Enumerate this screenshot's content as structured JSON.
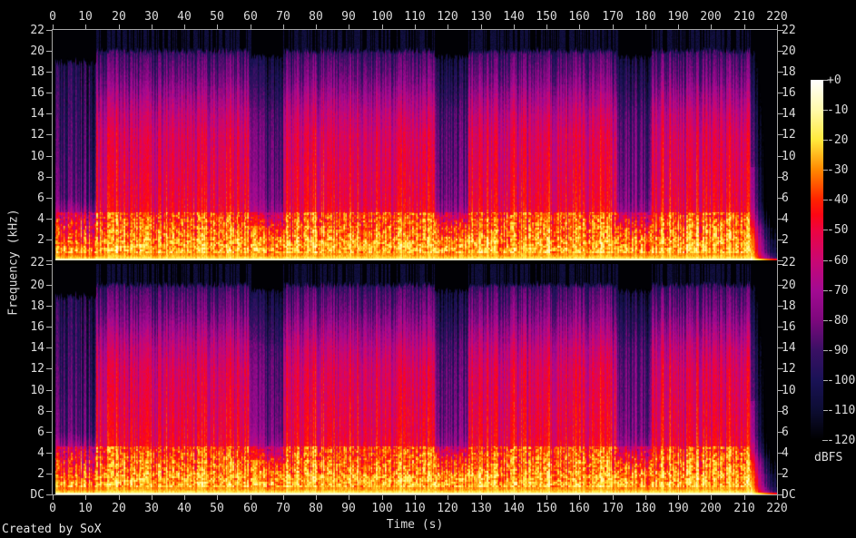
{
  "credit": "Created by SoX",
  "chart_data": {
    "type": "heatmap",
    "subtype": "audio-spectrogram",
    "title": "",
    "xlabel": "Time (s)",
    "ylabel": "Frequency (kHz)",
    "legend_unit": "dBFS",
    "channels": 2,
    "x_range_s": [
      0,
      220
    ],
    "x_ticks": [
      0,
      10,
      20,
      30,
      40,
      50,
      60,
      70,
      80,
      90,
      100,
      110,
      120,
      130,
      140,
      150,
      160,
      170,
      180,
      190,
      200,
      210,
      220
    ],
    "y_range_khz": [
      0,
      22
    ],
    "y_ticks_khz": [
      22,
      20,
      18,
      16,
      14,
      12,
      10,
      8,
      6,
      4,
      2,
      0
    ],
    "dc_label": "DC",
    "boundary_label": "22",
    "legend": {
      "range_dbfs": [
        0,
        -120
      ],
      "tick_labels": [
        "+0",
        "-10",
        "-20",
        "-30",
        "-40",
        "-50",
        "-60",
        "-70",
        "-80",
        "-90",
        "-100",
        "-110",
        "-120"
      ]
    },
    "palette": [
      {
        "db": 0,
        "color": "#ffffff"
      },
      {
        "db": -10,
        "color": "#fffaaa"
      },
      {
        "db": -20,
        "color": "#ffe93c"
      },
      {
        "db": -30,
        "color": "#ff8800"
      },
      {
        "db": -40,
        "color": "#ff2200"
      },
      {
        "db": -45,
        "color": "#fc0614"
      },
      {
        "db": -50,
        "color": "#ed0440"
      },
      {
        "db": -60,
        "color": "#ca0772"
      },
      {
        "db": -70,
        "color": "#a30a92"
      },
      {
        "db": -80,
        "color": "#7d087d"
      },
      {
        "db": -90,
        "color": "#3a1064"
      },
      {
        "db": -100,
        "color": "#1a1256"
      },
      {
        "db": -110,
        "color": "#0d0d33"
      },
      {
        "db": -120,
        "color": "#000000"
      }
    ],
    "segments": [
      {
        "start": 0,
        "end": 0.8,
        "type": "silence",
        "cut": 0
      },
      {
        "start": 0.8,
        "end": 13.2,
        "type": "intro",
        "cut": 19.2
      },
      {
        "start": 13.2,
        "end": 60.1,
        "type": "full",
        "cut": 20.15
      },
      {
        "start": 60.1,
        "end": 69.9,
        "type": "break",
        "cut": 19.6
      },
      {
        "start": 69.9,
        "end": 115.9,
        "type": "full",
        "cut": 20.15
      },
      {
        "start": 115.9,
        "end": 126.2,
        "type": "break",
        "cut": 19.6
      },
      {
        "start": 126.2,
        "end": 171.4,
        "type": "full",
        "cut": 20.15
      },
      {
        "start": 171.4,
        "end": 181.9,
        "type": "break",
        "cut": 19.6
      },
      {
        "start": 181.9,
        "end": 211.8,
        "type": "full",
        "cut": 20.15
      },
      {
        "start": 211.8,
        "end": 220.1,
        "type": "outro",
        "cut": 20.0
      }
    ],
    "profiles": {
      "silence": [
        [
          0,
          -120
        ],
        [
          22,
          -120
        ]
      ],
      "full": [
        [
          0,
          -3
        ],
        [
          0.15,
          -9
        ],
        [
          0.5,
          -21
        ],
        [
          1,
          -26
        ],
        [
          2,
          -29
        ],
        [
          3,
          -32
        ],
        [
          4,
          -36
        ],
        [
          6,
          -40
        ],
        [
          8,
          -42
        ],
        [
          10,
          -44
        ],
        [
          12,
          -46
        ],
        [
          14,
          -52
        ],
        [
          16,
          -62
        ],
        [
          17,
          -68
        ],
        [
          18,
          -73
        ],
        [
          19,
          -77
        ],
        [
          20,
          -83
        ],
        [
          22,
          -90
        ]
      ],
      "intro": [
        [
          0,
          -4
        ],
        [
          0.15,
          -12
        ],
        [
          0.5,
          -24
        ],
        [
          1,
          -28
        ],
        [
          2,
          -36
        ],
        [
          3,
          -44
        ],
        [
          4,
          -50
        ],
        [
          5,
          -62
        ],
        [
          6,
          -73
        ],
        [
          10,
          -78
        ],
        [
          14,
          -82
        ],
        [
          17,
          -85
        ],
        [
          19,
          -88
        ],
        [
          22,
          -92
        ]
      ],
      "break": [
        [
          0,
          -4
        ],
        [
          0.15,
          -10
        ],
        [
          0.5,
          -23
        ],
        [
          1,
          -28
        ],
        [
          2,
          -33
        ],
        [
          3,
          -40
        ],
        [
          4,
          -54
        ],
        [
          5,
          -64
        ],
        [
          6,
          -69
        ],
        [
          8,
          -72
        ],
        [
          10,
          -74
        ],
        [
          12,
          -76
        ],
        [
          14,
          -79
        ],
        [
          16,
          -86
        ],
        [
          17,
          -89
        ],
        [
          18,
          -92
        ],
        [
          19,
          -96
        ],
        [
          22,
          -100
        ]
      ]
    },
    "transient_times": [
      13.2,
      58.6,
      60.1,
      69.9,
      115.9,
      126.4,
      129.2,
      135.8,
      171.4,
      181.9,
      208.5,
      211.8
    ],
    "description": "Stereo audio spectrogram (SoX), two near-identical channel panels. Energy extends to ~20 kHz; quieter purple breakdown bands at ~60-70 s, ~116-126 s and ~171-182 s; striped intro 0-13 s; fade-out after ~212 s; bright yellow-white line at DC."
  }
}
